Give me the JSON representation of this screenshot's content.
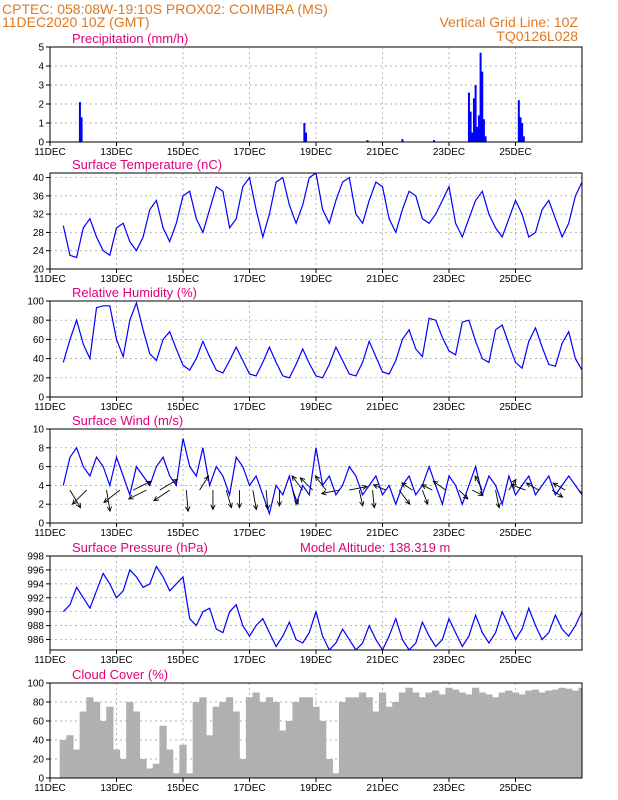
{
  "header": {
    "line1_left": "CPTEC:   058:08W-19:10S   PROX02: COIMBRA (MS)",
    "line2_left": "11DEC2020 10Z (GMT)",
    "line2_right": "Vertical Grid Line: 10Z",
    "line3_right": "TQ0126L028"
  },
  "colors": {
    "header": "#e07820",
    "title": "#e0007a",
    "series": "#0000ff",
    "precip": "#0000ff",
    "cloud": "#b0b0b0",
    "arrow": "#000000"
  },
  "x_ticks": [
    "11DEC",
    "13DEC",
    "15DEC",
    "17DEC",
    "19DEC",
    "21DEC",
    "23DEC",
    "25DEC"
  ],
  "x_tick_days": [
    0,
    2,
    4,
    6,
    8,
    10,
    12,
    14
  ],
  "chart_data": [
    {
      "id": "precip",
      "type": "bar",
      "title": "Precipitation (mm/h)",
      "ylim": [
        0,
        5
      ],
      "yticks": [
        0,
        1,
        2,
        3,
        4,
        5
      ],
      "grid": true,
      "x_unit": "days since 11DEC2020 00Z",
      "x": [
        0.9,
        0.95,
        7.65,
        7.7,
        12.6,
        12.65,
        12.7,
        12.75,
        12.8,
        12.85,
        12.9,
        12.95,
        13.0,
        13.05,
        13.1,
        14.1,
        14.15,
        14.2,
        14.25,
        9.55,
        10.6,
        11.55
      ],
      "values": [
        2.1,
        1.3,
        1.0,
        0.5,
        2.6,
        1.6,
        0.5,
        2.3,
        3.0,
        0.8,
        1.4,
        4.7,
        3.7,
        1.2,
        0.3,
        2.2,
        1.3,
        1.0,
        0.3,
        0.1,
        0.15,
        0.1
      ]
    },
    {
      "id": "temp",
      "type": "line",
      "title": "Surface Temperature (nC)",
      "ylim": [
        20,
        41
      ],
      "yticks": [
        20,
        24,
        28,
        32,
        36,
        40
      ],
      "grid": true,
      "x_unit": "days since 11DEC2020 00Z",
      "x": [
        0.4,
        0.6,
        0.8,
        1.0,
        1.2,
        1.4,
        1.6,
        1.8,
        2.0,
        2.2,
        2.4,
        2.6,
        2.8,
        3.0,
        3.2,
        3.4,
        3.6,
        3.8,
        4.0,
        4.2,
        4.4,
        4.6,
        4.8,
        5.0,
        5.2,
        5.4,
        5.6,
        5.8,
        6.0,
        6.2,
        6.4,
        6.6,
        6.8,
        7.0,
        7.2,
        7.4,
        7.6,
        7.8,
        8.0,
        8.2,
        8.4,
        8.6,
        8.8,
        9.0,
        9.2,
        9.4,
        9.6,
        9.8,
        10.0,
        10.2,
        10.4,
        10.6,
        10.8,
        11.0,
        11.2,
        11.4,
        11.6,
        11.8,
        12.0,
        12.2,
        12.4,
        12.6,
        12.8,
        13.0,
        13.2,
        13.4,
        13.6,
        13.8,
        14.0,
        14.2,
        14.4,
        14.6,
        14.8,
        15.0,
        15.2,
        15.4,
        15.6,
        15.8,
        16.0
      ],
      "values": [
        29.5,
        23,
        22.5,
        29,
        31,
        27,
        24,
        23,
        29,
        30,
        26,
        24,
        27,
        33,
        35,
        29,
        26,
        30,
        36,
        37,
        31,
        28,
        33,
        38,
        37,
        29,
        31,
        38,
        40,
        33,
        27,
        32,
        39,
        40,
        34,
        30,
        34,
        40,
        41,
        33,
        30,
        35,
        39,
        40,
        32,
        30,
        35,
        39,
        38,
        31,
        28,
        33,
        37,
        36,
        31,
        30,
        32,
        35,
        38,
        30,
        27,
        31,
        35,
        37,
        32,
        29,
        27,
        31,
        35,
        32,
        27,
        28,
        33,
        35,
        31,
        27,
        30,
        36,
        39
      ]
    },
    {
      "id": "rh",
      "type": "line",
      "title": "Relative Humidity (%)",
      "ylim": [
        0,
        100
      ],
      "yticks": [
        0,
        20,
        40,
        60,
        80,
        100
      ],
      "grid": true,
      "x_unit": "days since 11DEC2020 00Z",
      "x": [
        0.4,
        0.6,
        0.8,
        1.0,
        1.2,
        1.4,
        1.6,
        1.8,
        2.0,
        2.2,
        2.4,
        2.6,
        2.8,
        3.0,
        3.2,
        3.4,
        3.6,
        3.8,
        4.0,
        4.2,
        4.4,
        4.6,
        4.8,
        5.0,
        5.2,
        5.4,
        5.6,
        5.8,
        6.0,
        6.2,
        6.4,
        6.6,
        6.8,
        7.0,
        7.2,
        7.4,
        7.6,
        7.8,
        8.0,
        8.2,
        8.4,
        8.6,
        8.8,
        9.0,
        9.2,
        9.4,
        9.6,
        9.8,
        10.0,
        10.2,
        10.4,
        10.6,
        10.8,
        11.0,
        11.2,
        11.4,
        11.6,
        11.8,
        12.0,
        12.2,
        12.4,
        12.6,
        12.8,
        13.0,
        13.2,
        13.4,
        13.6,
        13.8,
        14.0,
        14.2,
        14.4,
        14.6,
        14.8,
        15.0,
        15.2,
        15.4,
        15.6,
        15.8,
        16.0
      ],
      "values": [
        36,
        60,
        80,
        55,
        40,
        93,
        95,
        95,
        60,
        42,
        80,
        98,
        70,
        45,
        38,
        60,
        68,
        50,
        33,
        28,
        40,
        58,
        42,
        28,
        25,
        38,
        52,
        38,
        24,
        22,
        36,
        52,
        36,
        22,
        20,
        34,
        50,
        35,
        22,
        20,
        34,
        52,
        38,
        24,
        22,
        36,
        58,
        42,
        26,
        24,
        38,
        60,
        70,
        50,
        42,
        82,
        80,
        62,
        48,
        44,
        78,
        80,
        58,
        40,
        36,
        70,
        75,
        55,
        36,
        30,
        58,
        72,
        52,
        34,
        32,
        56,
        68,
        40,
        28
      ]
    },
    {
      "id": "wind",
      "type": "line",
      "title": "Surface Wind (m/s)",
      "ylim": [
        0,
        10
      ],
      "yticks": [
        0,
        2,
        4,
        6,
        8,
        10
      ],
      "grid": true,
      "x_unit": "days since 11DEC2020 00Z",
      "x": [
        0.4,
        0.6,
        0.8,
        1.0,
        1.2,
        1.4,
        1.6,
        1.8,
        2.0,
        2.2,
        2.4,
        2.6,
        2.8,
        3.0,
        3.2,
        3.4,
        3.6,
        3.8,
        4.0,
        4.2,
        4.4,
        4.6,
        4.8,
        5.0,
        5.2,
        5.4,
        5.6,
        5.8,
        6.0,
        6.2,
        6.4,
        6.6,
        6.8,
        7.0,
        7.2,
        7.4,
        7.6,
        7.8,
        8.0,
        8.2,
        8.4,
        8.6,
        8.8,
        9.0,
        9.2,
        9.4,
        9.6,
        9.8,
        10.0,
        10.2,
        10.4,
        10.6,
        10.8,
        11.0,
        11.2,
        11.4,
        11.6,
        11.8,
        12.0,
        12.2,
        12.4,
        12.6,
        12.8,
        13.0,
        13.2,
        13.4,
        13.6,
        13.8,
        14.0,
        14.2,
        14.4,
        14.6,
        14.8,
        15.0,
        15.2,
        15.4,
        15.6,
        15.8,
        16.0
      ],
      "values": [
        4,
        7,
        8,
        6,
        5,
        7,
        6,
        4,
        7,
        5,
        3,
        6,
        5,
        4,
        6,
        7,
        5,
        4,
        9,
        6,
        5,
        8,
        4,
        6,
        5,
        3,
        7,
        6,
        4,
        5,
        3,
        1,
        4,
        3,
        5,
        2,
        4,
        3,
        8,
        4,
        5,
        3,
        4,
        6,
        5,
        3,
        4,
        5,
        3,
        4,
        2,
        4,
        5,
        3,
        4,
        6,
        4,
        2,
        5,
        4,
        2,
        4,
        6,
        3,
        5,
        4,
        2,
        5,
        3,
        4,
        5,
        3,
        4,
        5,
        3,
        4,
        5,
        4,
        3
      ],
      "arrows": [
        {
          "x": 0.6,
          "u": 0.6,
          "v": -1.0
        },
        {
          "x": 1.1,
          "u": -0.8,
          "v": -0.8
        },
        {
          "x": 1.7,
          "u": 0.2,
          "v": -1.2
        },
        {
          "x": 2.1,
          "u": -0.9,
          "v": -0.7
        },
        {
          "x": 2.5,
          "u": 1.0,
          "v": 0.5
        },
        {
          "x": 2.9,
          "u": -1.0,
          "v": -0.5
        },
        {
          "x": 3.3,
          "u": 1.0,
          "v": 0.6
        },
        {
          "x": 3.6,
          "u": -0.9,
          "v": -0.6
        },
        {
          "x": 4.1,
          "u": 0.1,
          "v": -1.2
        },
        {
          "x": 4.5,
          "u": 0.5,
          "v": 0.8
        },
        {
          "x": 4.9,
          "u": 0.0,
          "v": -1.1
        },
        {
          "x": 5.3,
          "u": 0.3,
          "v": -1.0
        },
        {
          "x": 5.7,
          "u": 0.0,
          "v": -1.0
        },
        {
          "x": 6.1,
          "u": 0.2,
          "v": -1.1
        },
        {
          "x": 6.5,
          "u": 0.1,
          "v": -1.1
        },
        {
          "x": 6.9,
          "u": 0.0,
          "v": -0.9
        },
        {
          "x": 7.3,
          "u": 0.3,
          "v": -0.8
        },
        {
          "x": 7.6,
          "u": -0.6,
          "v": 0.8
        },
        {
          "x": 7.9,
          "u": -0.7,
          "v": 0.7
        },
        {
          "x": 8.3,
          "u": -0.6,
          "v": 0.8
        },
        {
          "x": 8.7,
          "u": -1.0,
          "v": -0.2
        },
        {
          "x": 9.0,
          "u": 1.0,
          "v": 0.2
        },
        {
          "x": 9.3,
          "u": 0.2,
          "v": -0.9
        },
        {
          "x": 9.7,
          "u": 0.1,
          "v": -1.0
        },
        {
          "x": 10.1,
          "u": -0.7,
          "v": 0.3
        },
        {
          "x": 10.5,
          "u": 0.6,
          "v": -0.8
        },
        {
          "x": 10.9,
          "u": -0.6,
          "v": 0.4
        },
        {
          "x": 11.2,
          "u": 0.3,
          "v": -0.8
        },
        {
          "x": 11.5,
          "u": -0.6,
          "v": 0.3
        },
        {
          "x": 11.9,
          "u": -0.7,
          "v": 0.5
        },
        {
          "x": 12.3,
          "u": 0.5,
          "v": -0.5
        },
        {
          "x": 12.7,
          "u": 0.6,
          "v": -0.3
        },
        {
          "x": 13.0,
          "u": -0.4,
          "v": 0.8
        },
        {
          "x": 13.4,
          "u": 0.2,
          "v": -1.0
        },
        {
          "x": 13.8,
          "u": 0.4,
          "v": 0.6
        },
        {
          "x": 14.3,
          "u": -0.8,
          "v": 0.3
        },
        {
          "x": 14.7,
          "u": -0.7,
          "v": 0.4
        },
        {
          "x": 15.1,
          "u": 0.6,
          "v": -0.4
        },
        {
          "x": 15.5,
          "u": -0.7,
          "v": 0.4
        },
        {
          "x": 15.9,
          "u": 0.5,
          "v": -0.5
        }
      ]
    },
    {
      "id": "pressure",
      "type": "line",
      "title": "Surface Pressure (hPa)",
      "annotation": "Model Altitude: 138.319 m",
      "ylim": [
        984.5,
        998
      ],
      "yticks": [
        986,
        988,
        990,
        992,
        994,
        996,
        998
      ],
      "grid": true,
      "x_unit": "days since 11DEC2020 00Z",
      "x": [
        0.4,
        0.6,
        0.8,
        1.0,
        1.2,
        1.4,
        1.6,
        1.8,
        2.0,
        2.2,
        2.4,
        2.6,
        2.8,
        3.0,
        3.2,
        3.4,
        3.6,
        3.8,
        4.0,
        4.2,
        4.4,
        4.6,
        4.8,
        5.0,
        5.2,
        5.4,
        5.6,
        5.8,
        6.0,
        6.2,
        6.4,
        6.6,
        6.8,
        7.0,
        7.2,
        7.4,
        7.6,
        7.8,
        8.0,
        8.2,
        8.4,
        8.6,
        8.8,
        9.0,
        9.2,
        9.4,
        9.6,
        9.8,
        10.0,
        10.2,
        10.4,
        10.6,
        10.8,
        11.0,
        11.2,
        11.4,
        11.6,
        11.8,
        12.0,
        12.2,
        12.4,
        12.6,
        12.8,
        13.0,
        13.2,
        13.4,
        13.6,
        13.8,
        14.0,
        14.2,
        14.4,
        14.6,
        14.8,
        15.0,
        15.2,
        15.4,
        15.6,
        15.8,
        16.0
      ],
      "values": [
        990,
        991,
        993.5,
        992,
        990.5,
        993,
        995.5,
        994,
        992,
        993,
        996,
        995,
        993.5,
        994,
        996.5,
        995,
        993,
        994,
        995,
        989,
        988,
        990,
        990.5,
        987.5,
        987,
        990,
        991,
        988,
        986.5,
        988,
        989,
        987,
        985,
        986.5,
        988.5,
        986,
        985.5,
        987,
        990,
        986.5,
        984,
        985.5,
        987.5,
        986,
        984.5,
        985.5,
        988,
        986,
        984.5,
        986.5,
        989,
        986,
        984.5,
        985.5,
        988.5,
        986.5,
        985,
        986,
        989,
        987,
        985,
        986.5,
        989.5,
        987,
        985.5,
        987,
        990,
        988,
        986,
        987.5,
        990.5,
        988,
        986,
        987,
        989.5,
        987.5,
        986.5,
        988,
        990
      ]
    },
    {
      "id": "cloud",
      "type": "bar",
      "title": "Cloud Cover (%)",
      "ylim": [
        0,
        100
      ],
      "yticks": [
        0,
        20,
        40,
        60,
        80,
        100
      ],
      "grid": true,
      "x_unit": "days since 11DEC2020 00Z",
      "x": [
        0.4,
        0.6,
        0.8,
        1.0,
        1.2,
        1.4,
        1.6,
        1.8,
        2.0,
        2.2,
        2.4,
        2.6,
        2.8,
        3.0,
        3.2,
        3.4,
        3.6,
        3.8,
        4.0,
        4.2,
        4.4,
        4.6,
        4.8,
        5.0,
        5.2,
        5.4,
        5.6,
        5.8,
        6.0,
        6.2,
        6.4,
        6.6,
        6.8,
        7.0,
        7.2,
        7.4,
        7.6,
        7.8,
        8.0,
        8.2,
        8.4,
        8.6,
        8.8,
        9.0,
        9.2,
        9.4,
        9.6,
        9.8,
        10.0,
        10.2,
        10.4,
        10.6,
        10.8,
        11.0,
        11.2,
        11.4,
        11.6,
        11.8,
        12.0,
        12.2,
        12.4,
        12.6,
        12.8,
        13.0,
        13.2,
        13.4,
        13.6,
        13.8,
        14.0,
        14.2,
        14.4,
        14.6,
        14.8,
        15.0,
        15.2,
        15.4,
        15.6,
        15.8,
        16.0
      ],
      "values": [
        40,
        45,
        30,
        70,
        85,
        80,
        60,
        75,
        30,
        20,
        80,
        70,
        20,
        10,
        15,
        55,
        30,
        5,
        35,
        5,
        80,
        85,
        45,
        75,
        80,
        85,
        70,
        20,
        85,
        90,
        80,
        85,
        80,
        50,
        60,
        80,
        85,
        85,
        75,
        60,
        20,
        5,
        80,
        85,
        85,
        90,
        85,
        70,
        90,
        75,
        80,
        90,
        95,
        90,
        85,
        90,
        92,
        88,
        95,
        93,
        90,
        88,
        95,
        90,
        88,
        85,
        90,
        92,
        90,
        88,
        92,
        93,
        90,
        92,
        93,
        95,
        94,
        92,
        95
      ]
    }
  ]
}
